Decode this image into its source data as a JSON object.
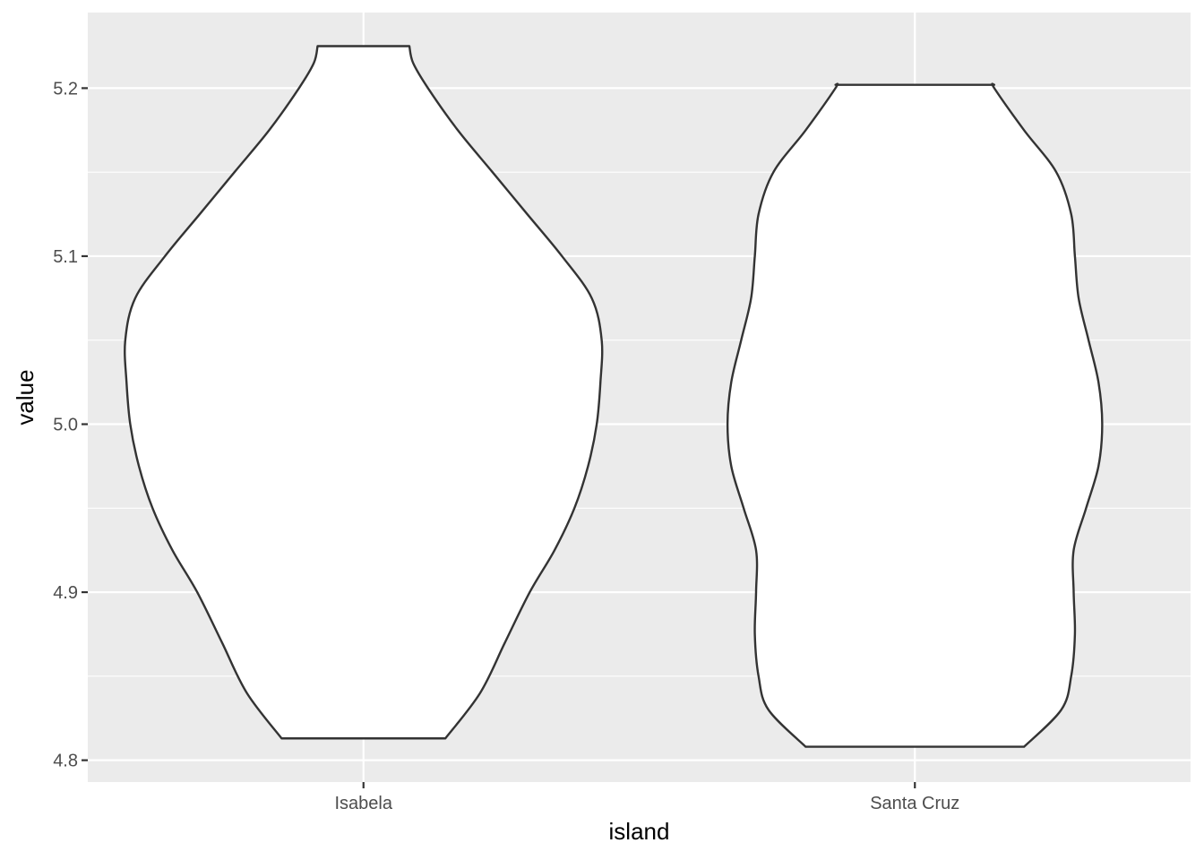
{
  "chart_data": {
    "type": "violin",
    "xlabel": "island",
    "ylabel": "value",
    "categories": [
      "Isabela",
      "Santa Cruz"
    ],
    "ylim": [
      4.787,
      5.245
    ],
    "y_ticks": [
      4.8,
      4.9,
      5.0,
      5.1,
      5.2
    ],
    "y_tick_labels": [
      "4.8",
      "4.9",
      "5.0",
      "5.1",
      "5.2"
    ],
    "y_minor_ticks": [
      4.85,
      4.95,
      5.05,
      5.15
    ],
    "grid": true,
    "legend": "none",
    "colors": {
      "panel": "#ebebeb",
      "grid": "#ffffff",
      "violin_fill": "#ffffff",
      "violin_outline": "#333333"
    },
    "series": [
      {
        "category": "Isabela",
        "ymin": 4.813,
        "ymax": 5.225,
        "density_profile": [
          [
            4.813,
            0.33
          ],
          [
            4.84,
            0.47
          ],
          [
            4.87,
            0.57
          ],
          [
            4.9,
            0.67
          ],
          [
            4.925,
            0.77
          ],
          [
            4.95,
            0.85
          ],
          [
            4.975,
            0.905
          ],
          [
            5.0,
            0.94
          ],
          [
            5.025,
            0.955
          ],
          [
            5.05,
            0.96
          ],
          [
            5.075,
            0.92
          ],
          [
            5.1,
            0.8
          ],
          [
            5.125,
            0.66
          ],
          [
            5.15,
            0.52
          ],
          [
            5.175,
            0.38
          ],
          [
            5.2,
            0.26
          ],
          [
            5.215,
            0.2
          ],
          [
            5.225,
            0.185
          ]
        ]
      },
      {
        "category": "Santa Cruz",
        "ymin": 4.808,
        "ymax": 5.202,
        "density_profile": [
          [
            4.808,
            0.44
          ],
          [
            4.83,
            0.59
          ],
          [
            4.85,
            0.63
          ],
          [
            4.875,
            0.645
          ],
          [
            4.9,
            0.64
          ],
          [
            4.925,
            0.64
          ],
          [
            4.95,
            0.69
          ],
          [
            4.975,
            0.74
          ],
          [
            5.0,
            0.755
          ],
          [
            5.025,
            0.74
          ],
          [
            5.05,
            0.7
          ],
          [
            5.075,
            0.66
          ],
          [
            5.1,
            0.645
          ],
          [
            5.125,
            0.63
          ],
          [
            5.15,
            0.57
          ],
          [
            5.175,
            0.44
          ],
          [
            5.2,
            0.32
          ],
          [
            5.202,
            0.32
          ]
        ]
      }
    ]
  }
}
